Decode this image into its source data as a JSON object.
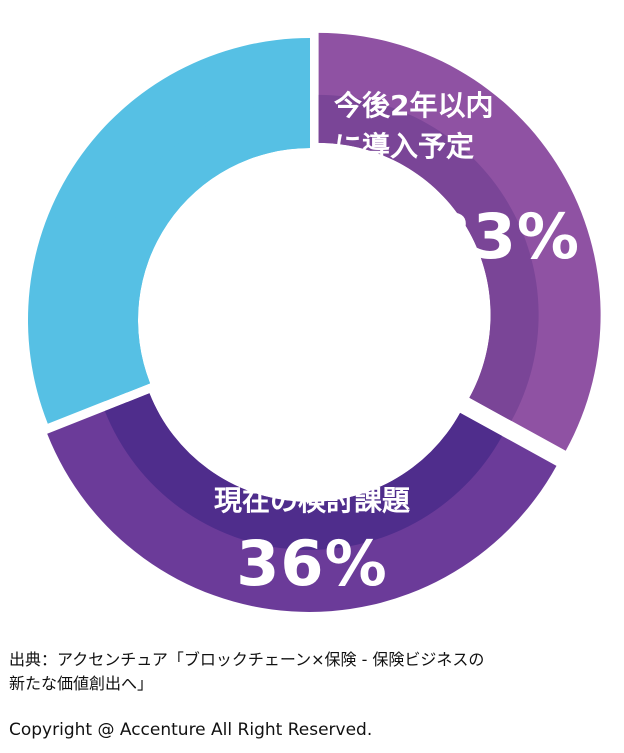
{
  "chart_data": {
    "type": "pie",
    "style": "donut",
    "slices": [
      {
        "label_line1": "今後2年以内",
        "label_line2": "に導入予定",
        "value": 33,
        "value_label": "33%",
        "color": "#8F52A3",
        "inner_color": "#7A4597",
        "offset": true
      },
      {
        "label": "現在の検討課題",
        "value": 36,
        "value_label": "36%",
        "color": "#6B3B99",
        "inner_color": "#4F2D8C",
        "offset": true
      },
      {
        "label": "",
        "value": 31,
        "value_label": "",
        "color": "#56C0E4",
        "inner_color": "#56C0E4",
        "offset": false
      }
    ]
  },
  "footer": {
    "source_line1": "出典：アクセンチュア「ブロックチェーン×保険 - 保険ビジネスの",
    "source_line2": "新たな価値創出へ」",
    "copyright": "Copyright @ Accenture All Right Reserved."
  }
}
